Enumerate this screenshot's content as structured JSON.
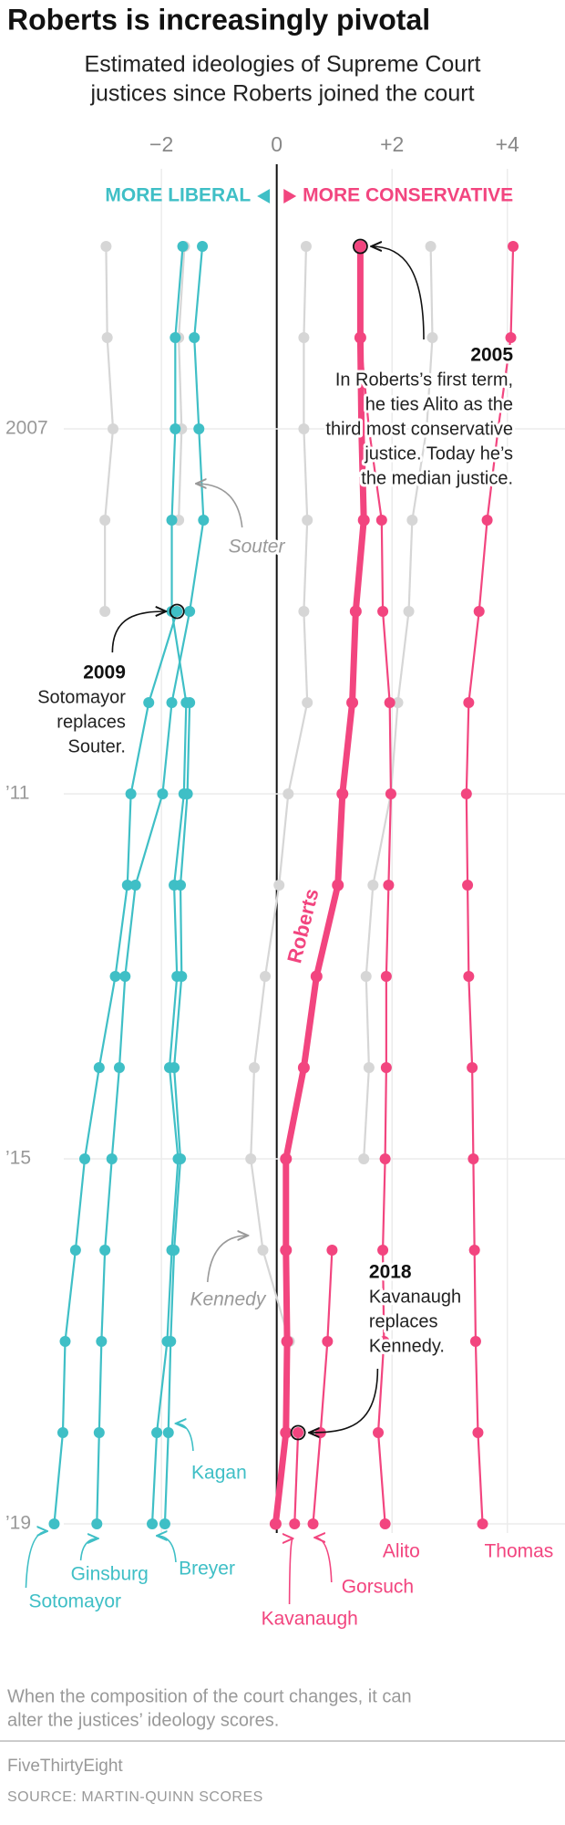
{
  "chart_data": {
    "type": "line",
    "orientation": "vertical",
    "title": "Roberts is increasingly pivotal",
    "subtitle": [
      "Estimated ideologies of Supreme Court",
      "justices since Roberts joined the court"
    ],
    "left_label": "MORE LIBERAL",
    "right_label": "MORE CONSERVATIVE",
    "x": [
      2005,
      2006,
      2007,
      2008,
      2009,
      2010,
      2011,
      2012,
      2013,
      2014,
      2015,
      2016,
      2017,
      2018,
      2019
    ],
    "xlim": [
      2005,
      2019
    ],
    "xticks": [
      2007,
      {
        "value": 2011,
        "label": "’11"
      },
      {
        "value": 2015,
        "label": "’15"
      },
      {
        "value": 2019,
        "label": "’19"
      }
    ],
    "ylim": [
      -4.8,
      5
    ],
    "yticks": [
      {
        "value": -2,
        "label": "−2"
      },
      0,
      {
        "value": 2,
        "label": "+2"
      },
      {
        "value": 4,
        "label": "+4"
      }
    ],
    "grid": true,
    "series": [
      {
        "name": "Kennedy",
        "color": "#d6d6d6",
        "values": [
          0.51,
          0.47,
          0.47,
          0.53,
          0.47,
          0.53,
          0.2,
          0.04,
          -0.2,
          -0.39,
          -0.45,
          -0.24,
          0.22,
          null,
          null
        ]
      },
      {
        "color": "#d6d6d6",
        "values": [
          2.67,
          2.7,
          2.6,
          2.35,
          2.29,
          2.1,
          1.98,
          1.67,
          1.55,
          1.6,
          1.51,
          null,
          null,
          null,
          null
        ]
      },
      {
        "color": "#d6d6d6",
        "values": [
          -2.96,
          -2.94,
          -2.84,
          -2.98,
          -2.98,
          null,
          null,
          null,
          null,
          null,
          null,
          null,
          null,
          null,
          null
        ]
      },
      {
        "name": "Souter",
        "color": "#d6d6d6",
        "values": [
          -1.6,
          -1.7,
          -1.65,
          -1.7,
          null,
          null,
          null,
          null,
          null,
          null,
          null,
          null,
          null,
          null,
          null
        ]
      },
      {
        "name": "Ginsburg",
        "color": "#3fbfc6",
        "values": [
          -1.29,
          -1.43,
          -1.35,
          -1.27,
          -1.51,
          -1.82,
          -1.98,
          -2.45,
          -2.63,
          -2.73,
          -2.86,
          -2.98,
          -3.04,
          -3.08,
          -3.12
        ]
      },
      {
        "name": "Breyer",
        "color": "#3fbfc6",
        "values": [
          -1.63,
          -1.76,
          -1.76,
          -1.82,
          -1.82,
          -1.57,
          -1.61,
          -1.78,
          -1.73,
          -1.86,
          -1.71,
          -1.82,
          -1.9,
          -2.08,
          -2.16
        ]
      },
      {
        "name": "Kagan",
        "color": "#3fbfc6",
        "values": [
          null,
          null,
          null,
          null,
          null,
          -1.51,
          -1.55,
          -1.67,
          -1.65,
          -1.78,
          -1.67,
          -1.78,
          -1.84,
          -1.88,
          -1.94
        ]
      },
      {
        "name": "Sotomayor",
        "color": "#3fbfc6",
        "values": [
          null,
          null,
          null,
          null,
          -1.73,
          -2.22,
          -2.53,
          -2.59,
          -2.8,
          -3.08,
          -3.33,
          -3.49,
          -3.67,
          -3.71,
          -3.86
        ]
      },
      {
        "name": "Alito",
        "color": "#f2457f",
        "values": [
          1.45,
          1.45,
          1.6,
          1.82,
          1.84,
          1.96,
          1.98,
          1.94,
          1.9,
          1.9,
          1.88,
          1.84,
          1.86,
          1.76,
          1.88
        ]
      },
      {
        "name": "Thomas",
        "color": "#f2457f",
        "values": [
          4.1,
          4.06,
          3.84,
          3.65,
          3.51,
          3.33,
          3.29,
          3.31,
          3.33,
          3.39,
          3.41,
          3.43,
          3.45,
          3.49,
          3.57
        ]
      },
      {
        "name": "Gorsuch",
        "color": "#f2457f",
        "values": [
          null,
          null,
          null,
          null,
          null,
          null,
          null,
          null,
          null,
          null,
          null,
          0.96,
          0.88,
          0.76,
          0.63
        ]
      },
      {
        "name": "Kavanaugh",
        "color": "#f2457f",
        "values": [
          null,
          null,
          null,
          null,
          null,
          null,
          null,
          null,
          null,
          null,
          null,
          null,
          null,
          0.37,
          0.31
        ]
      },
      {
        "name": "Roberts",
        "color": "#f2457f",
        "highlight": true,
        "values": [
          1.45,
          1.45,
          1.47,
          1.51,
          1.37,
          1.31,
          1.14,
          1.06,
          0.69,
          0.47,
          0.16,
          0.16,
          0.18,
          0.16,
          -0.02
        ]
      }
    ],
    "annotations": [
      {
        "title": "2005",
        "lines": [
          "In Roberts’s first term,",
          "he ties Alito as the",
          "third most conservative",
          "justice. Today he’s",
          "the median justice."
        ]
      },
      {
        "title": "2009",
        "lines": [
          "Sotomayor",
          "replaces",
          "Souter."
        ]
      },
      {
        "title": "2018",
        "lines": [
          "Kavanaugh",
          "replaces",
          "Kennedy."
        ]
      }
    ],
    "note": [
      "When the composition of the court changes, it can",
      "alter the justices’ ideology scores."
    ],
    "credit": "FiveThirtyEight",
    "source": "SOURCE: MARTIN-QUINN SCORES"
  }
}
